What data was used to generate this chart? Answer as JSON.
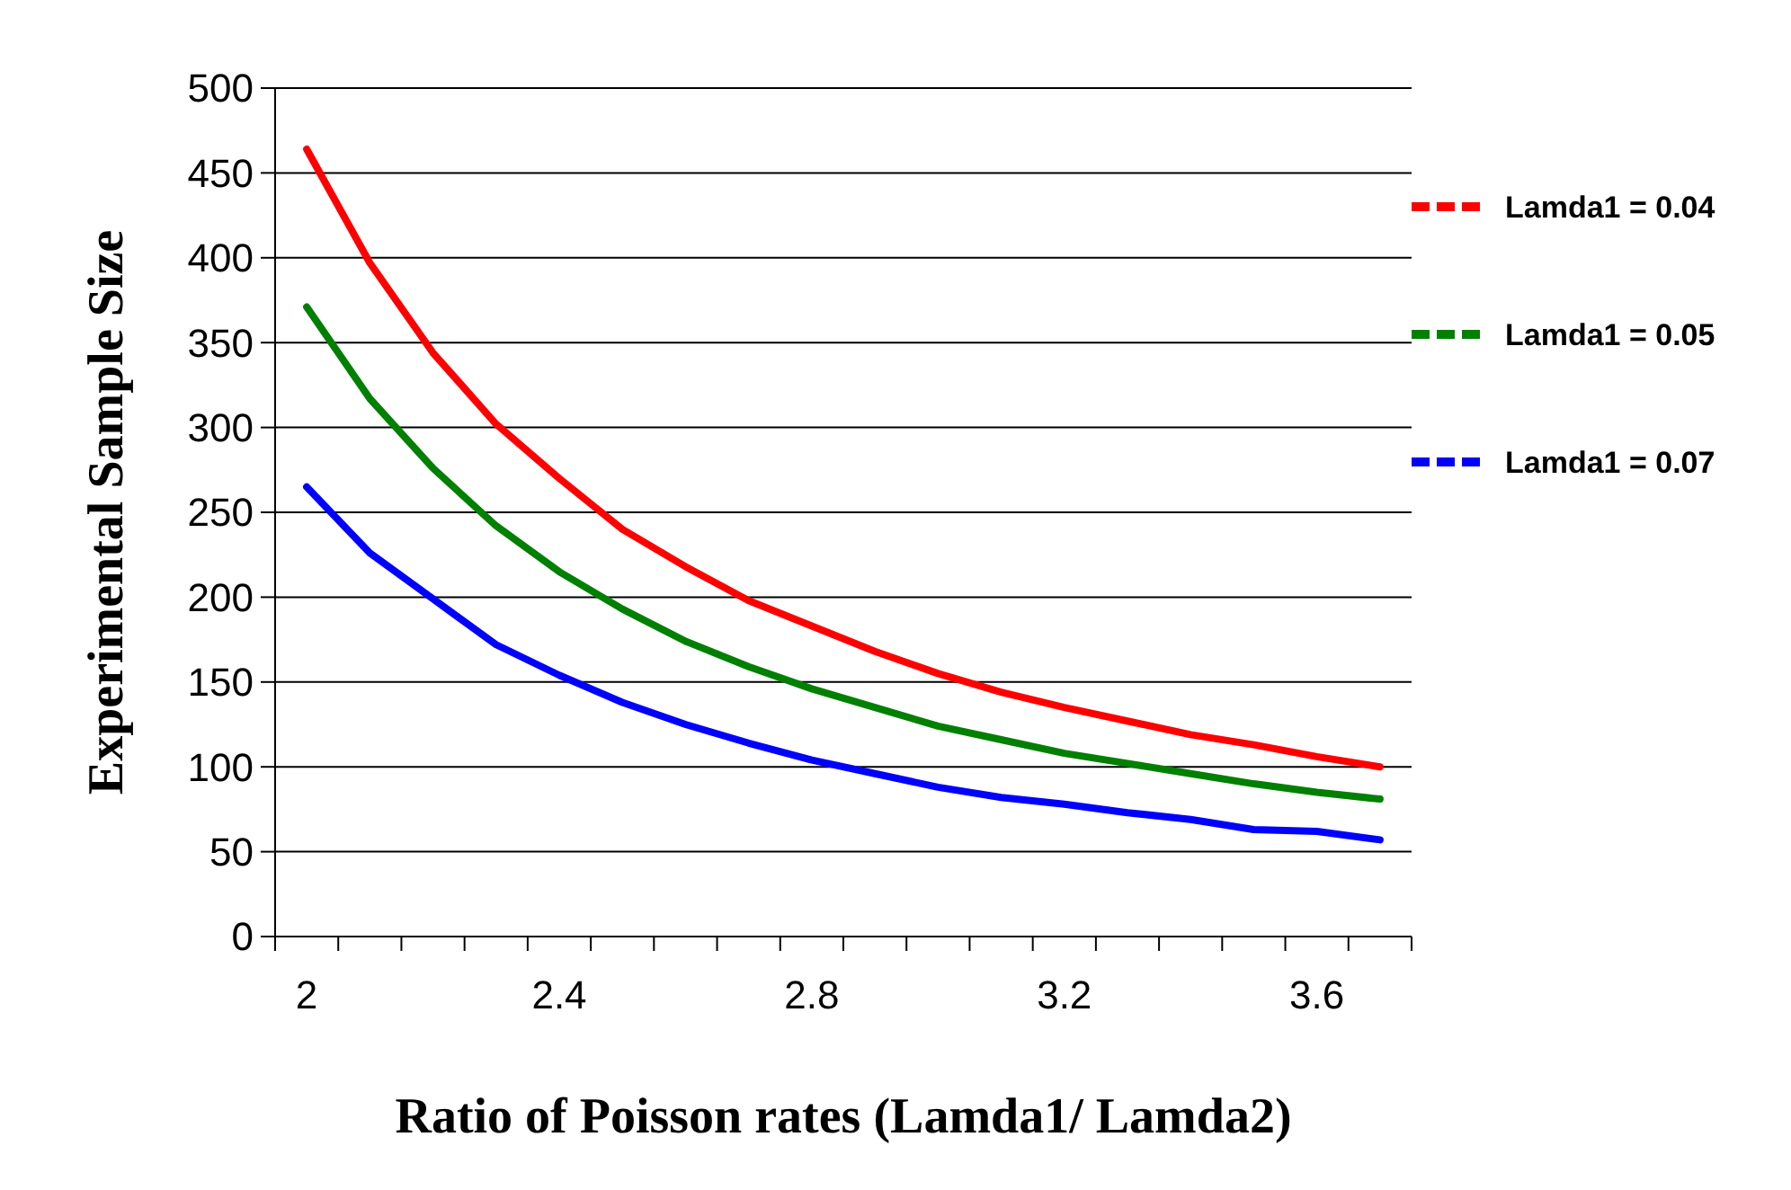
{
  "chart_data": {
    "type": "line",
    "xlabel": "Ratio of Poisson rates (Lamda1/ Lamda2)",
    "ylabel": "Experimental Sample Size",
    "categories": [
      "2",
      null,
      null,
      null,
      "2.4",
      null,
      null,
      null,
      "2.8",
      null,
      null,
      null,
      "3.2",
      null,
      null,
      null,
      "3.6",
      null
    ],
    "ylim": [
      0,
      500
    ],
    "yticks": [
      0,
      50,
      100,
      150,
      200,
      250,
      300,
      350,
      400,
      450,
      500
    ],
    "grid": "y",
    "legend": "right",
    "marker": "none",
    "line_style": "solid",
    "series": [
      {
        "name": "Lamda1 = 0.04",
        "color": "#ff0000",
        "values": [
          464,
          397,
          344,
          302,
          270,
          240,
          218,
          198,
          183,
          168,
          155,
          144,
          135,
          127,
          119,
          113,
          106,
          100
        ]
      },
      {
        "name": "Lamda1 = 0.05",
        "color": "#008000",
        "values": [
          371,
          317,
          276,
          242,
          215,
          193,
          174,
          159,
          146,
          135,
          124,
          116,
          108,
          102,
          96,
          90,
          85,
          81
        ]
      },
      {
        "name": "Lamda1 = 0.07",
        "color": "#0000ff",
        "values": [
          265,
          226,
          199,
          172,
          154,
          138,
          125,
          114,
          104,
          96,
          88,
          82,
          78,
          73,
          69,
          63,
          62,
          57
        ]
      }
    ]
  }
}
